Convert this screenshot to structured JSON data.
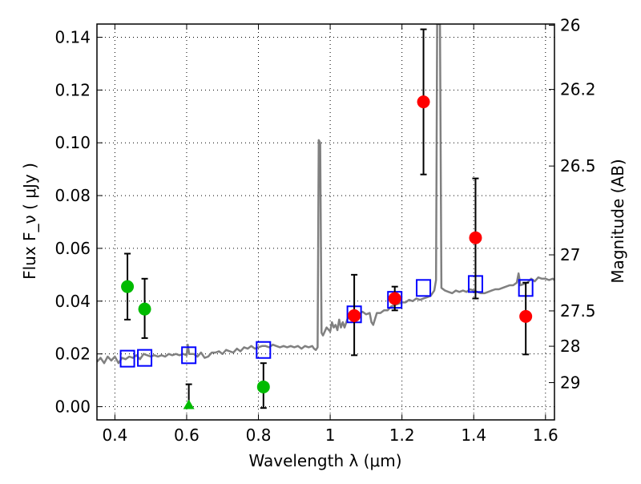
{
  "chart_data": {
    "type": "scatter",
    "title": "",
    "xlabel": "Wavelength  λ (μm)",
    "ylabel": "Flux  F_ν  ( μJy )",
    "ylabel_right": "Magnitude (AB)",
    "xlim": [
      0.35,
      1.625
    ],
    "ylim": [
      -0.005,
      0.145
    ],
    "grid": true,
    "x_ticks": [
      {
        "v": 0.4,
        "label": "0.4"
      },
      {
        "v": 0.6,
        "label": "0.6"
      },
      {
        "v": 0.8,
        "label": "0.8"
      },
      {
        "v": 1.0,
        "label": "1"
      },
      {
        "v": 1.2,
        "label": "1.2"
      },
      {
        "v": 1.4,
        "label": "1.4"
      },
      {
        "v": 1.6,
        "label": "1.6"
      }
    ],
    "y_ticks": [
      {
        "v": 0.0,
        "label": "0.00"
      },
      {
        "v": 0.02,
        "label": "0.02"
      },
      {
        "v": 0.04,
        "label": "0.04"
      },
      {
        "v": 0.06,
        "label": "0.06"
      },
      {
        "v": 0.08,
        "label": "0.08"
      },
      {
        "v": 0.1,
        "label": "0.10"
      },
      {
        "v": 0.12,
        "label": "0.12"
      },
      {
        "v": 0.14,
        "label": "0.14"
      }
    ],
    "right_ticks": [
      {
        "mag": 26,
        "label": "26"
      },
      {
        "mag": 26.2,
        "label": "26.2"
      },
      {
        "mag": 26.5,
        "label": "26.5"
      },
      {
        "mag": 27,
        "label": "27"
      },
      {
        "mag": 27.5,
        "label": "27.5"
      },
      {
        "mag": 28,
        "label": "28"
      },
      {
        "mag": 29,
        "label": "29"
      }
    ],
    "series": [
      {
        "name": "model-spectrum",
        "kind": "line",
        "color": "#808080",
        "points": [
          [
            0.35,
            0.017
          ],
          [
            0.36,
            0.0185
          ],
          [
            0.37,
            0.0165
          ],
          [
            0.38,
            0.019
          ],
          [
            0.39,
            0.0175
          ],
          [
            0.4,
            0.019
          ],
          [
            0.41,
            0.0165
          ],
          [
            0.42,
            0.0185
          ],
          [
            0.43,
            0.018
          ],
          [
            0.44,
            0.019
          ],
          [
            0.45,
            0.0185
          ],
          [
            0.46,
            0.0195
          ],
          [
            0.47,
            0.018
          ],
          [
            0.48,
            0.02
          ],
          [
            0.49,
            0.0195
          ],
          [
            0.5,
            0.019
          ],
          [
            0.51,
            0.0195
          ],
          [
            0.52,
            0.019
          ],
          [
            0.53,
            0.0195
          ],
          [
            0.54,
            0.019
          ],
          [
            0.55,
            0.02
          ],
          [
            0.56,
            0.0195
          ],
          [
            0.57,
            0.02
          ],
          [
            0.58,
            0.0195
          ],
          [
            0.59,
            0.02
          ],
          [
            0.6,
            0.0195
          ],
          [
            0.603,
            0.0235
          ],
          [
            0.607,
            0.02
          ],
          [
            0.62,
            0.02
          ],
          [
            0.63,
            0.019
          ],
          [
            0.64,
            0.0205
          ],
          [
            0.65,
            0.0185
          ],
          [
            0.66,
            0.019
          ],
          [
            0.67,
            0.0205
          ],
          [
            0.68,
            0.0205
          ],
          [
            0.69,
            0.021
          ],
          [
            0.7,
            0.02
          ],
          [
            0.71,
            0.0215
          ],
          [
            0.72,
            0.021
          ],
          [
            0.73,
            0.0205
          ],
          [
            0.74,
            0.022
          ],
          [
            0.75,
            0.021
          ],
          [
            0.76,
            0.0225
          ],
          [
            0.77,
            0.022
          ],
          [
            0.78,
            0.023
          ],
          [
            0.79,
            0.022
          ],
          [
            0.8,
            0.0225
          ],
          [
            0.81,
            0.023
          ],
          [
            0.82,
            0.023
          ],
          [
            0.83,
            0.0225
          ],
          [
            0.84,
            0.0235
          ],
          [
            0.85,
            0.023
          ],
          [
            0.86,
            0.0225
          ],
          [
            0.87,
            0.023
          ],
          [
            0.88,
            0.0225
          ],
          [
            0.89,
            0.023
          ],
          [
            0.9,
            0.0225
          ],
          [
            0.91,
            0.023
          ],
          [
            0.92,
            0.022
          ],
          [
            0.93,
            0.023
          ],
          [
            0.94,
            0.0225
          ],
          [
            0.95,
            0.023
          ],
          [
            0.955,
            0.022
          ],
          [
            0.96,
            0.0215
          ],
          [
            0.965,
            0.0225
          ],
          [
            0.968,
            0.101
          ],
          [
            0.972,
            0.1
          ],
          [
            0.976,
            0.028
          ],
          [
            0.98,
            0.027
          ],
          [
            0.99,
            0.03
          ],
          [
            1.0,
            0.0285
          ],
          [
            1.005,
            0.032
          ],
          [
            1.01,
            0.03
          ],
          [
            1.015,
            0.031
          ],
          [
            1.02,
            0.029
          ],
          [
            1.025,
            0.033
          ],
          [
            1.03,
            0.03
          ],
          [
            1.035,
            0.032
          ],
          [
            1.04,
            0.03
          ],
          [
            1.05,
            0.034
          ],
          [
            1.06,
            0.035
          ],
          [
            1.07,
            0.0345
          ],
          [
            1.08,
            0.035
          ],
          [
            1.09,
            0.036
          ],
          [
            1.1,
            0.035
          ],
          [
            1.11,
            0.0355
          ],
          [
            1.115,
            0.032
          ],
          [
            1.12,
            0.031
          ],
          [
            1.13,
            0.0355
          ],
          [
            1.14,
            0.0355
          ],
          [
            1.15,
            0.0365
          ],
          [
            1.16,
            0.0365
          ],
          [
            1.17,
            0.038
          ],
          [
            1.18,
            0.0385
          ],
          [
            1.19,
            0.039
          ],
          [
            1.2,
            0.0395
          ],
          [
            1.21,
            0.0395
          ],
          [
            1.22,
            0.0405
          ],
          [
            1.23,
            0.04
          ],
          [
            1.24,
            0.041
          ],
          [
            1.25,
            0.0405
          ],
          [
            1.26,
            0.041
          ],
          [
            1.27,
            0.0415
          ],
          [
            1.28,
            0.042
          ],
          [
            1.29,
            0.044
          ],
          [
            1.295,
            0.048
          ],
          [
            1.298,
            0.145
          ],
          [
            1.306,
            0.145
          ],
          [
            1.31,
            0.045
          ],
          [
            1.32,
            0.044
          ],
          [
            1.33,
            0.0435
          ],
          [
            1.34,
            0.043
          ],
          [
            1.35,
            0.044
          ],
          [
            1.36,
            0.0435
          ],
          [
            1.37,
            0.044
          ],
          [
            1.38,
            0.0435
          ],
          [
            1.39,
            0.0445
          ],
          [
            1.4,
            0.044
          ],
          [
            1.41,
            0.0435
          ],
          [
            1.42,
            0.043
          ],
          [
            1.43,
            0.043
          ],
          [
            1.44,
            0.0435
          ],
          [
            1.45,
            0.044
          ],
          [
            1.46,
            0.0445
          ],
          [
            1.47,
            0.0445
          ],
          [
            1.48,
            0.045
          ],
          [
            1.49,
            0.0455
          ],
          [
            1.5,
            0.046
          ],
          [
            1.51,
            0.046
          ],
          [
            1.52,
            0.047
          ],
          [
            1.525,
            0.0505
          ],
          [
            1.53,
            0.046
          ],
          [
            1.54,
            0.0465
          ],
          [
            1.55,
            0.047
          ],
          [
            1.56,
            0.0485
          ],
          [
            1.57,
            0.0475
          ],
          [
            1.58,
            0.049
          ],
          [
            1.59,
            0.0485
          ],
          [
            1.6,
            0.0485
          ],
          [
            1.61,
            0.048
          ],
          [
            1.62,
            0.0485
          ],
          [
            1.625,
            0.048
          ]
        ]
      },
      {
        "name": "model-band-flux",
        "kind": "square",
        "color": "#0000ff",
        "points": [
          {
            "x": 0.435,
            "y": 0.0182
          },
          {
            "x": 0.483,
            "y": 0.0185
          },
          {
            "x": 0.606,
            "y": 0.0195
          },
          {
            "x": 0.814,
            "y": 0.0215
          },
          {
            "x": 1.067,
            "y": 0.035
          },
          {
            "x": 1.18,
            "y": 0.0405
          },
          {
            "x": 1.26,
            "y": 0.045
          },
          {
            "x": 1.405,
            "y": 0.0465
          },
          {
            "x": 1.545,
            "y": 0.045
          }
        ]
      },
      {
        "name": "observed-optical",
        "kind": "circle",
        "color": "#00bb00",
        "points": [
          {
            "x": 0.435,
            "y": 0.0455,
            "lo": 0.033,
            "hi": 0.058
          },
          {
            "x": 0.483,
            "y": 0.037,
            "lo": 0.026,
            "hi": 0.0485
          },
          {
            "x": 0.606,
            "y": 0.0,
            "lo": 0.0,
            "hi": 0.0085,
            "marker": "triangle"
          },
          {
            "x": 0.814,
            "y": 0.0075,
            "lo": -0.0005,
            "hi": 0.0165
          }
        ]
      },
      {
        "name": "observed-nir",
        "kind": "circle",
        "color": "#ff0000",
        "points": [
          {
            "x": 1.067,
            "y": 0.0345,
            "lo": 0.0195,
            "hi": 0.05
          },
          {
            "x": 1.18,
            "y": 0.041,
            "lo": 0.0365,
            "hi": 0.0455
          },
          {
            "x": 1.26,
            "y": 0.1155,
            "lo": 0.088,
            "hi": 0.143
          },
          {
            "x": 1.405,
            "y": 0.064,
            "lo": 0.041,
            "hi": 0.0865
          },
          {
            "x": 1.545,
            "y": 0.0342,
            "lo": 0.0198,
            "hi": 0.047
          }
        ]
      }
    ]
  }
}
